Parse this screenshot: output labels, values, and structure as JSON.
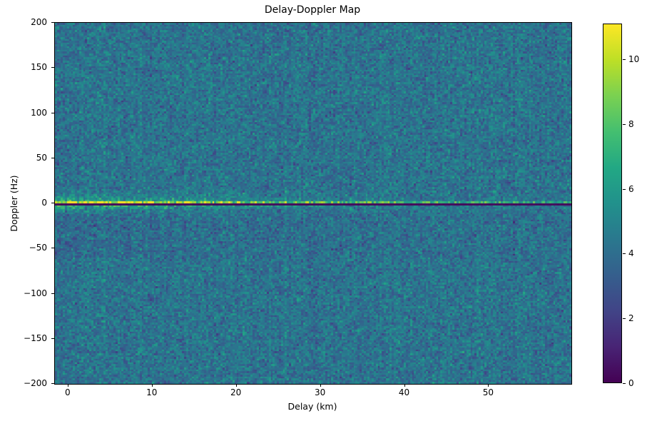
{
  "chart_data": {
    "type": "heatmap",
    "title": "Delay-Doppler Map",
    "xlabel": "Delay (km)",
    "ylabel": "Doppler (Hz)",
    "xlim": [
      -1.6,
      59.8
    ],
    "ylim": [
      -200,
      200
    ],
    "x_ticks": [
      0,
      10,
      20,
      30,
      40,
      50
    ],
    "x_tick_labels": [
      "0",
      "10",
      "20",
      "30",
      "40",
      "50"
    ],
    "y_ticks": [
      200,
      150,
      100,
      50,
      0,
      -50,
      -100,
      -150,
      -200
    ],
    "y_tick_labels": [
      "200",
      "150",
      "100",
      "50",
      "0",
      "−50",
      "−100",
      "−150",
      "−200"
    ],
    "grid": false,
    "legend": "none",
    "colorbar": {
      "position": "right",
      "vmin": 0,
      "vmax": 11.1,
      "ticks": [
        0,
        2,
        4,
        6,
        8,
        10
      ],
      "tick_labels": [
        "0",
        "2",
        "4",
        "6",
        "8",
        "10"
      ],
      "colormap": "viridis",
      "colormap_stops": [
        [
          0.0,
          "#440154"
        ],
        [
          0.1,
          "#482475"
        ],
        [
          0.2,
          "#414487"
        ],
        [
          0.3,
          "#355f8d"
        ],
        [
          0.4,
          "#2a788e"
        ],
        [
          0.5,
          "#21918c"
        ],
        [
          0.6,
          "#22a884"
        ],
        [
          0.7,
          "#44bf70"
        ],
        [
          0.8,
          "#7ad151"
        ],
        [
          0.9,
          "#bddf26"
        ],
        [
          1.0,
          "#fde725"
        ]
      ]
    },
    "heatmap_field": {
      "grid_cols": 256,
      "grid_rows": 200,
      "seed": 1337,
      "noise_floor_mean": 4.25,
      "noise_floor_std": 0.82,
      "column_striping_std": 0.15,
      "below_line_dim": 0.4,
      "below_line_band_hz": [
        -60,
        -6
      ],
      "signal": {
        "main_line_doppler_hz": 1,
        "main_line_peak": 11.1,
        "main_line_base": 5.3,
        "main_line_span": 5.9,
        "main_line_decay_km": 45,
        "dark_line_doppler_hz": -1,
        "dark_line_value": 0.15,
        "secondary_line_doppler_hz": -3,
        "secondary_line_base": 4.6,
        "secondary_line_span": 4.5,
        "secondary_line_decay_km": 40,
        "halo_halfwidth_hz": 14,
        "halo_amp": 5.5,
        "halo_decay_km": 26,
        "halo_doppler_scale_hz": 5.5
      }
    }
  }
}
